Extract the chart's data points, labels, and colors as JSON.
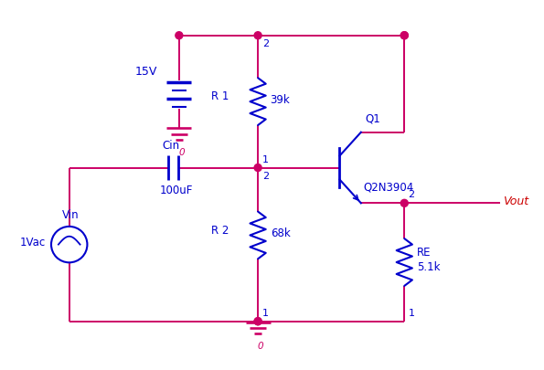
{
  "bg_color": "#ffffff",
  "wire_color": "#cc0066",
  "comp_color": "#0000cc",
  "vout_color": "#cc0000",
  "fig_width": 5.95,
  "fig_height": 4.06,
  "labels": {
    "vcc": "15V",
    "r1_name": "R 1",
    "r1_val": "39k",
    "r2_name": "R 2",
    "r2_val": "68k",
    "re_name": "RE",
    "re_val": "5.1k",
    "cin_name": "Cin",
    "cin_val": "100uF",
    "q1_name": "Q1",
    "q1_model": "Q2N3904",
    "vin_label": "Vin",
    "vin_val": "1Vac",
    "vout_label": "Vout",
    "gnd_label": "0"
  }
}
